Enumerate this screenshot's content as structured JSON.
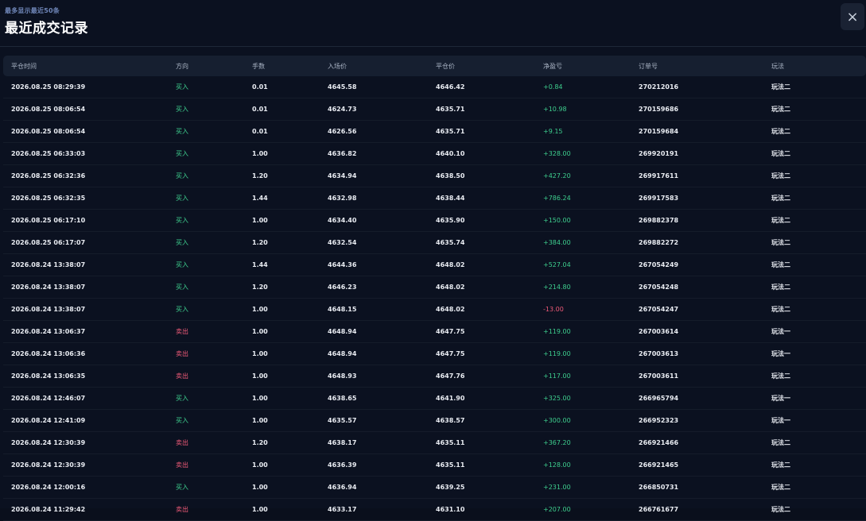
{
  "header": {
    "subtitle": "最多显示最近50条",
    "title": "最近成交记录",
    "close_icon": "×"
  },
  "colors": {
    "buy": "#3ecf8e",
    "sell": "#ef5a78",
    "background": "#0b1120",
    "header_row": "#161f30"
  },
  "table": {
    "columns": [
      "平仓时间",
      "方向",
      "手数",
      "入场价",
      "平仓价",
      "净盈亏",
      "订单号",
      "玩法"
    ],
    "rows": [
      {
        "time": "2026.08.25 08:29:39",
        "dir": "买入",
        "lots": "0.01",
        "entry": "4645.58",
        "close": "4646.42",
        "pnl": "+0.84",
        "order": "270212016",
        "mode": "玩法二"
      },
      {
        "time": "2026.08.25 08:06:54",
        "dir": "买入",
        "lots": "0.01",
        "entry": "4624.73",
        "close": "4635.71",
        "pnl": "+10.98",
        "order": "270159686",
        "mode": "玩法二"
      },
      {
        "time": "2026.08.25 08:06:54",
        "dir": "买入",
        "lots": "0.01",
        "entry": "4626.56",
        "close": "4635.71",
        "pnl": "+9.15",
        "order": "270159684",
        "mode": "玩法二"
      },
      {
        "time": "2026.08.25 06:33:03",
        "dir": "买入",
        "lots": "1.00",
        "entry": "4636.82",
        "close": "4640.10",
        "pnl": "+328.00",
        "order": "269920191",
        "mode": "玩法二"
      },
      {
        "time": "2026.08.25 06:32:36",
        "dir": "买入",
        "lots": "1.20",
        "entry": "4634.94",
        "close": "4638.50",
        "pnl": "+427.20",
        "order": "269917611",
        "mode": "玩法二"
      },
      {
        "time": "2026.08.25 06:32:35",
        "dir": "买入",
        "lots": "1.44",
        "entry": "4632.98",
        "close": "4638.44",
        "pnl": "+786.24",
        "order": "269917583",
        "mode": "玩法二"
      },
      {
        "time": "2026.08.25 06:17:10",
        "dir": "买入",
        "lots": "1.00",
        "entry": "4634.40",
        "close": "4635.90",
        "pnl": "+150.00",
        "order": "269882378",
        "mode": "玩法二"
      },
      {
        "time": "2026.08.25 06:17:07",
        "dir": "买入",
        "lots": "1.20",
        "entry": "4632.54",
        "close": "4635.74",
        "pnl": "+384.00",
        "order": "269882272",
        "mode": "玩法二"
      },
      {
        "time": "2026.08.24 13:38:07",
        "dir": "买入",
        "lots": "1.44",
        "entry": "4644.36",
        "close": "4648.02",
        "pnl": "+527.04",
        "order": "267054249",
        "mode": "玩法二"
      },
      {
        "time": "2026.08.24 13:38:07",
        "dir": "买入",
        "lots": "1.20",
        "entry": "4646.23",
        "close": "4648.02",
        "pnl": "+214.80",
        "order": "267054248",
        "mode": "玩法二"
      },
      {
        "time": "2026.08.24 13:38:07",
        "dir": "买入",
        "lots": "1.00",
        "entry": "4648.15",
        "close": "4648.02",
        "pnl": "-13.00",
        "order": "267054247",
        "mode": "玩法二"
      },
      {
        "time": "2026.08.24 13:06:37",
        "dir": "卖出",
        "lots": "1.00",
        "entry": "4648.94",
        "close": "4647.75",
        "pnl": "+119.00",
        "order": "267003614",
        "mode": "玩法一"
      },
      {
        "time": "2026.08.24 13:06:36",
        "dir": "卖出",
        "lots": "1.00",
        "entry": "4648.94",
        "close": "4647.75",
        "pnl": "+119.00",
        "order": "267003613",
        "mode": "玩法一"
      },
      {
        "time": "2026.08.24 13:06:35",
        "dir": "卖出",
        "lots": "1.00",
        "entry": "4648.93",
        "close": "4647.76",
        "pnl": "+117.00",
        "order": "267003611",
        "mode": "玩法二"
      },
      {
        "time": "2026.08.24 12:46:07",
        "dir": "买入",
        "lots": "1.00",
        "entry": "4638.65",
        "close": "4641.90",
        "pnl": "+325.00",
        "order": "266965794",
        "mode": "玩法一"
      },
      {
        "time": "2026.08.24 12:41:09",
        "dir": "买入",
        "lots": "1.00",
        "entry": "4635.57",
        "close": "4638.57",
        "pnl": "+300.00",
        "order": "266952323",
        "mode": "玩法一"
      },
      {
        "time": "2026.08.24 12:30:39",
        "dir": "卖出",
        "lots": "1.20",
        "entry": "4638.17",
        "close": "4635.11",
        "pnl": "+367.20",
        "order": "266921466",
        "mode": "玩法二"
      },
      {
        "time": "2026.08.24 12:30:39",
        "dir": "卖出",
        "lots": "1.00",
        "entry": "4636.39",
        "close": "4635.11",
        "pnl": "+128.00",
        "order": "266921465",
        "mode": "玩法二"
      },
      {
        "time": "2026.08.24 12:00:16",
        "dir": "买入",
        "lots": "1.00",
        "entry": "4636.94",
        "close": "4639.25",
        "pnl": "+231.00",
        "order": "266850731",
        "mode": "玩法二"
      },
      {
        "time": "2026.08.24 11:29:42",
        "dir": "卖出",
        "lots": "1.00",
        "entry": "4633.17",
        "close": "4631.10",
        "pnl": "+207.00",
        "order": "266761677",
        "mode": "玩法二"
      }
    ]
  }
}
